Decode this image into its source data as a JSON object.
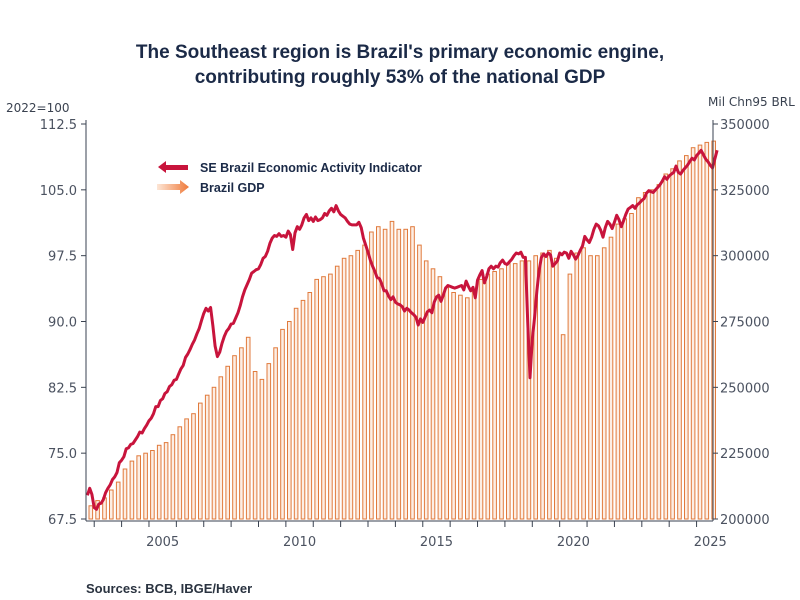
{
  "chart_data": {
    "type": "bar+line",
    "title": "The Southeast region is Brazil's primary economic engine, contributing roughly 53% of the national GDP",
    "title_lines": [
      "The Southeast region is Brazil's primary economic engine,",
      "contributing roughly 53% of the national GDP"
    ],
    "source": "Sources:  BCB, IBGE/Haver",
    "left_axis": {
      "label": "2022=100",
      "range": [
        67.5,
        112.5
      ],
      "ticks": [
        "112.5",
        "105.0",
        "97.5",
        "90.0",
        "82.5",
        "75.0",
        "67.5"
      ],
      "tick_values": [
        112.5,
        105.0,
        97.5,
        90.0,
        82.5,
        75.0,
        67.5
      ]
    },
    "right_axis": {
      "label": "Mil Chn95 BRL",
      "range": [
        200000,
        350000
      ],
      "ticks": [
        "350000",
        "325000",
        "300000",
        "275000",
        "250000",
        "225000",
        "200000"
      ],
      "tick_values": [
        350000,
        325000,
        300000,
        275000,
        250000,
        225000,
        200000
      ]
    },
    "x_axis": {
      "range": [
        2002.7,
        2025.6
      ],
      "ticks": [
        "2005",
        "2010",
        "2015",
        "2020",
        "2025"
      ],
      "tick_values": [
        2005,
        2010,
        2015,
        2020,
        2025
      ]
    },
    "legend": {
      "position": "top-left",
      "items": [
        {
          "label": "SE Brazil Economic Activity Indicator",
          "axis": "left",
          "color": "#c8143c",
          "type": "line"
        },
        {
          "label": "Brazil GDP",
          "axis": "right",
          "color": "#e07a3c",
          "type": "bar"
        }
      ]
    },
    "series": [
      {
        "name": "Brazil GDP",
        "axis": "right",
        "type": "bar",
        "frequency": "quarterly",
        "start": 2002.75,
        "values": [
          205000,
          207000,
          208000,
          211000,
          214000,
          219000,
          222000,
          224000,
          225000,
          226000,
          228000,
          229000,
          232000,
          235000,
          238000,
          240000,
          244000,
          247000,
          250000,
          254000,
          258000,
          262000,
          265000,
          269000,
          256000,
          253000,
          259000,
          265000,
          272000,
          275000,
          280000,
          283000,
          286000,
          291000,
          292000,
          293000,
          296000,
          299000,
          300000,
          302000,
          304000,
          309000,
          311000,
          310000,
          313000,
          310000,
          310000,
          311000,
          304000,
          298000,
          295000,
          292000,
          288000,
          286000,
          285000,
          284000,
          287000,
          291000,
          293000,
          294000,
          295000,
          297000,
          297000,
          298000,
          298000,
          300000,
          301000,
          302000,
          299000,
          270000,
          293000,
          301000,
          303000,
          300000,
          300000,
          303000,
          307000,
          312000,
          314000,
          316000,
          322000,
          324000,
          325000,
          327000,
          331000,
          333000,
          336000,
          338000,
          341000,
          342000,
          343000,
          343500
        ]
      },
      {
        "name": "SE Brazil Economic Activity Indicator",
        "axis": "left",
        "type": "line",
        "frequency": "monthly",
        "start": 2002.75,
        "values": [
          70.2,
          71.0,
          70.3,
          68.8,
          68.6,
          69.2,
          69.3,
          69.7,
          70.5,
          71.0,
          71.4,
          72.0,
          72.3,
          72.8,
          73.9,
          74.2,
          74.6,
          75.5,
          75.6,
          76.0,
          76.1,
          76.5,
          76.9,
          77.4,
          77.3,
          77.8,
          78.2,
          78.7,
          79.0,
          79.5,
          80.3,
          80.3,
          81.0,
          81.2,
          81.8,
          82.0,
          82.6,
          82.8,
          83.3,
          83.4,
          84.0,
          84.6,
          85.0,
          85.9,
          86.3,
          86.8,
          87.4,
          87.9,
          88.6,
          89.2,
          90.1,
          90.9,
          91.5,
          91.2,
          91.6,
          89.5,
          87.2,
          86.0,
          86.5,
          87.5,
          88.3,
          88.9,
          89.2,
          89.7,
          89.8,
          90.4,
          91.0,
          91.8,
          92.8,
          93.6,
          94.2,
          94.8,
          95.5,
          95.7,
          95.9,
          96.0,
          96.5,
          97.2,
          97.4,
          98.0,
          98.9,
          99.5,
          99.8,
          99.7,
          100.0,
          99.7,
          99.8,
          99.6,
          100.3,
          99.9,
          98.2,
          100.1,
          100.8,
          100.5,
          101.0,
          101.8,
          102.2,
          101.5,
          101.8,
          101.4,
          101.9,
          101.5,
          101.6,
          101.8,
          102.3,
          102.1,
          102.6,
          102.9,
          102.5,
          103.2,
          102.6,
          102.2,
          102.0,
          101.8,
          101.4,
          101.1,
          101.0,
          101.0,
          101.0,
          101.3,
          100.7,
          99.5,
          98.7,
          97.9,
          97.0,
          96.3,
          95.7,
          95.0,
          94.9,
          94.3,
          93.5,
          93.5,
          92.9,
          92.5,
          92.8,
          92.2,
          92.0,
          91.9,
          91.7,
          91.2,
          91.5,
          91.3,
          91.0,
          90.8,
          90.5,
          89.6,
          90.3,
          89.9,
          90.5,
          91.1,
          91.3,
          91.0,
          92.2,
          92.8,
          93.0,
          92.3,
          93.0,
          93.8,
          94.1,
          94.0,
          93.9,
          93.8,
          93.9,
          94.0,
          94.1,
          93.6,
          94.6,
          94.0,
          93.5,
          93.9,
          92.7,
          94.7,
          95.3,
          95.8,
          94.4,
          95.1,
          96.0,
          96.3,
          96.0,
          96.3,
          96.2,
          96.7,
          97.0,
          96.6,
          96.5,
          96.8,
          97.1,
          97.5,
          97.8,
          97.7,
          97.9,
          97.3,
          97.3,
          90.0,
          83.6,
          88.0,
          90.5,
          93.5,
          95.8,
          97.3,
          97.7,
          97.4,
          97.8,
          97.6,
          96.3,
          96.6,
          96.9,
          97.8,
          97.6,
          97.9,
          97.8,
          97.2,
          98.0,
          97.6,
          97.1,
          97.5,
          98.1,
          98.6,
          99.7,
          99.3,
          99.0,
          99.6,
          100.5,
          101.1,
          100.9,
          100.4,
          99.6,
          100.7,
          101.4,
          101.1,
          100.6,
          101.3,
          102.1,
          101.6,
          100.8,
          101.5,
          102.2,
          102.8,
          103.0,
          103.2,
          102.9,
          103.3,
          103.5,
          103.8,
          104.0,
          104.6,
          104.9,
          104.8,
          104.7,
          105.0,
          105.3,
          105.6,
          106.0,
          106.5,
          106.2,
          106.6,
          106.8,
          107.0,
          107.7,
          107.0,
          106.8,
          107.2,
          107.5,
          107.8,
          108.2,
          108.6,
          108.4,
          108.9,
          109.2,
          109.5,
          109.0,
          108.5,
          108.2,
          107.8,
          107.5,
          108.5,
          109.5
        ]
      }
    ]
  }
}
